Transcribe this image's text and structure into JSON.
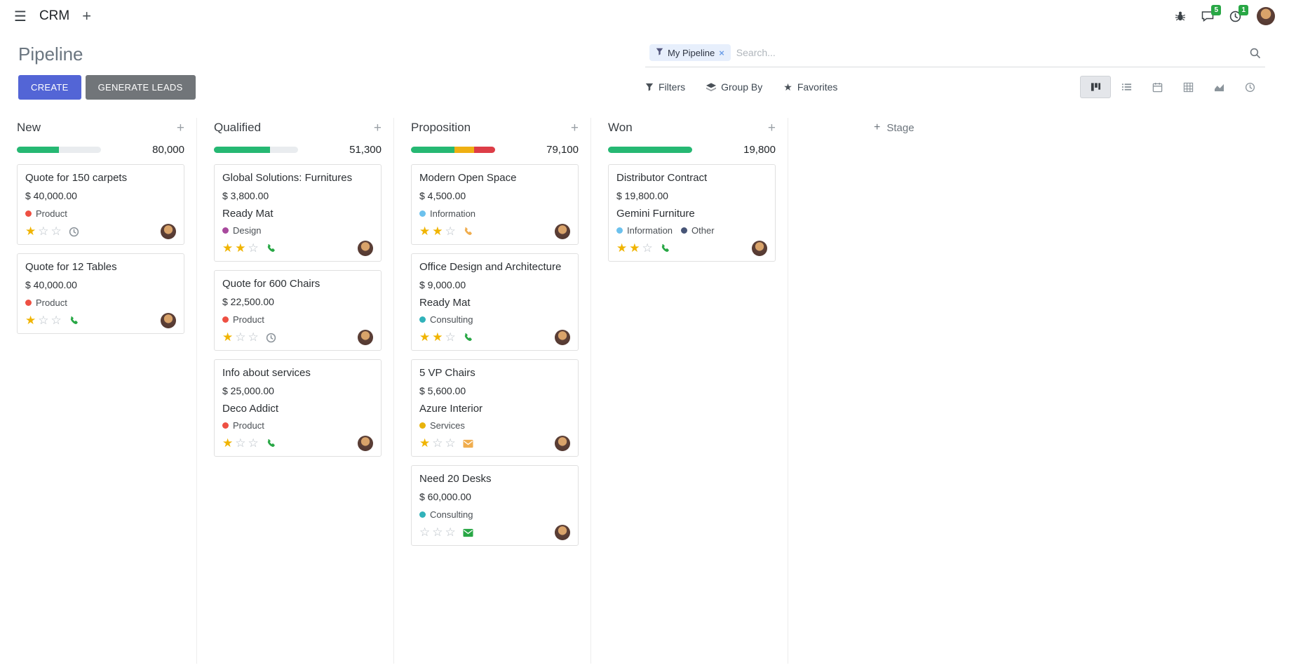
{
  "colors": {
    "primary": "#5365D6",
    "secondary_button": "#717579",
    "progress_green": "#26b873",
    "progress_yellow": "#efb012",
    "progress_red": "#dd3d47",
    "badge_green": "#28a745",
    "star_gold": "#f0b400"
  },
  "navbar": {
    "app_name": "CRM",
    "messages_badge": "5",
    "activities_badge": "1"
  },
  "control_panel": {
    "title": "Pipeline",
    "create_label": "CREATE",
    "generate_leads_label": "GENERATE LEADS",
    "filters_label": "Filters",
    "group_by_label": "Group By",
    "favorites_label": "Favorites",
    "search": {
      "facet_label": "My Pipeline",
      "remove_label": "×",
      "placeholder": "Search..."
    }
  },
  "board": {
    "add_column_label": "Stage",
    "columns": [
      {
        "name": "New",
        "total": "80,000",
        "progress": [
          {
            "name": "success",
            "color": "#26b873",
            "pct": 50
          }
        ],
        "cards": [
          {
            "title": "Quote for 150 carpets",
            "amount": "$ 40,000.00",
            "partner": "",
            "tags": [
              {
                "label": "Product",
                "color": "#ee5043"
              }
            ],
            "stars": 1,
            "activity": {
              "icon": "clock",
              "color": "#8a9299"
            }
          },
          {
            "title": "Quote for 12 Tables",
            "amount": "$ 40,000.00",
            "partner": "",
            "tags": [
              {
                "label": "Product",
                "color": "#ee5043"
              }
            ],
            "stars": 1,
            "activity": {
              "icon": "phone",
              "color": "#28a745"
            }
          }
        ]
      },
      {
        "name": "Qualified",
        "total": "51,300",
        "progress": [
          {
            "name": "success",
            "color": "#26b873",
            "pct": 67
          }
        ],
        "cards": [
          {
            "title": "Global Solutions: Furnitures",
            "amount": "$ 3,800.00",
            "partner": "Ready Mat",
            "tags": [
              {
                "label": "Design",
                "color": "#a8499d"
              }
            ],
            "stars": 2,
            "activity": {
              "icon": "phone",
              "color": "#28a745"
            }
          },
          {
            "title": "Quote for 600 Chairs",
            "amount": "$ 22,500.00",
            "partner": "",
            "tags": [
              {
                "label": "Product",
                "color": "#ee5043"
              }
            ],
            "stars": 1,
            "activity": {
              "icon": "clock",
              "color": "#8a9299"
            }
          },
          {
            "title": "Info about services",
            "amount": "$ 25,000.00",
            "partner": "Deco Addict",
            "tags": [
              {
                "label": "Product",
                "color": "#ee5043"
              }
            ],
            "stars": 1,
            "activity": {
              "icon": "phone",
              "color": "#28a745"
            }
          }
        ]
      },
      {
        "name": "Proposition",
        "total": "79,100",
        "progress": [
          {
            "name": "success",
            "color": "#26b873",
            "pct": 52
          },
          {
            "name": "warning",
            "color": "#efb012",
            "pct": 23
          },
          {
            "name": "danger",
            "color": "#dd3d47",
            "pct": 25
          }
        ],
        "cards": [
          {
            "title": "Modern Open Space",
            "amount": "$ 4,500.00",
            "partner": "",
            "tags": [
              {
                "label": "Information",
                "color": "#6cc1ed"
              }
            ],
            "stars": 2,
            "activity": {
              "icon": "phone",
              "color": "#f0ad4e"
            }
          },
          {
            "title": "Office Design and Architecture",
            "amount": "$ 9,000.00",
            "partner": "Ready Mat",
            "tags": [
              {
                "label": "Consulting",
                "color": "#31b2ba"
              }
            ],
            "stars": 2,
            "activity": {
              "icon": "phone",
              "color": "#28a745"
            }
          },
          {
            "title": "5 VP Chairs",
            "amount": "$ 5,600.00",
            "partner": "Azure Interior",
            "tags": [
              {
                "label": "Services",
                "color": "#e8b30c"
              }
            ],
            "stars": 1,
            "activity": {
              "icon": "mail",
              "color": "#f0ad4e"
            }
          },
          {
            "title": "Need 20 Desks",
            "amount": "$ 60,000.00",
            "partner": "",
            "tags": [
              {
                "label": "Consulting",
                "color": "#31b2ba"
              }
            ],
            "stars": 0,
            "activity": {
              "icon": "mail",
              "color": "#28a745"
            }
          }
        ]
      },
      {
        "name": "Won",
        "total": "19,800",
        "progress": [
          {
            "name": "success",
            "color": "#26b873",
            "pct": 100
          }
        ],
        "cards": [
          {
            "title": "Distributor Contract",
            "amount": "$ 19,800.00",
            "partner": "Gemini Furniture",
            "tags": [
              {
                "label": "Information",
                "color": "#6cc1ed"
              },
              {
                "label": "Other",
                "color": "#475577"
              }
            ],
            "stars": 2,
            "activity": {
              "icon": "phone",
              "color": "#28a745"
            }
          }
        ]
      }
    ]
  }
}
